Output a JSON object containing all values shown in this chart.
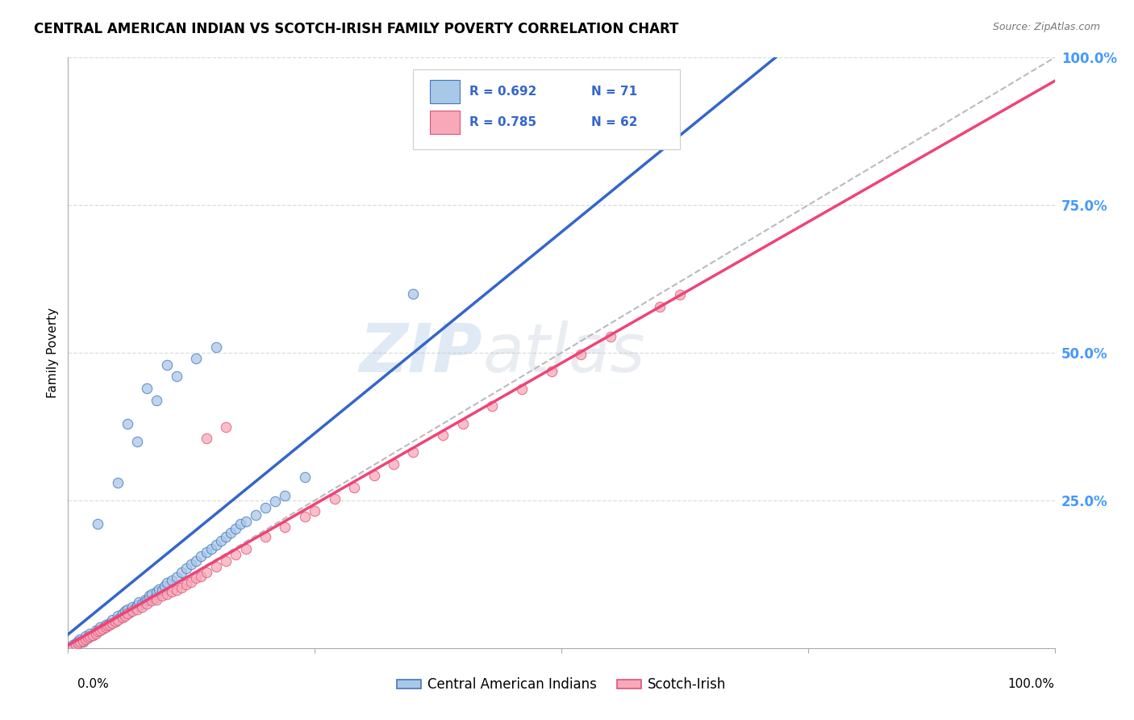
{
  "title": "CENTRAL AMERICAN INDIAN VS SCOTCH-IRISH FAMILY POVERTY CORRELATION CHART",
  "source": "Source: ZipAtlas.com",
  "ylabel": "Family Poverty",
  "legend_r1": "R = 0.692",
  "legend_n1": "N = 71",
  "legend_r2": "R = 0.785",
  "legend_n2": "N = 62",
  "legend_label1": "Central American Indians",
  "legend_label2": "Scotch-Irish",
  "blue_fill": "#A8C8E8",
  "blue_edge": "#4477BB",
  "pink_fill": "#F8A8B8",
  "pink_edge": "#DD5577",
  "blue_line_color": "#3366CC",
  "pink_line_color": "#EE4477",
  "diagonal_color": "#BBBBBB",
  "grid_color": "#DDDDDD",
  "watermark_color": "#AACCEE",
  "right_tick_color": "#4499FF",
  "blue_x": [
    0.005,
    0.008,
    0.01,
    0.012,
    0.015,
    0.018,
    0.02,
    0.022,
    0.025,
    0.028,
    0.03,
    0.032,
    0.035,
    0.038,
    0.04,
    0.042,
    0.045,
    0.048,
    0.05,
    0.052,
    0.055,
    0.058,
    0.06,
    0.062,
    0.065,
    0.068,
    0.07,
    0.072,
    0.075,
    0.078,
    0.08,
    0.082,
    0.085,
    0.088,
    0.09,
    0.092,
    0.095,
    0.098,
    0.1,
    0.105,
    0.11,
    0.115,
    0.12,
    0.125,
    0.13,
    0.135,
    0.14,
    0.145,
    0.15,
    0.155,
    0.16,
    0.165,
    0.17,
    0.175,
    0.18,
    0.19,
    0.2,
    0.21,
    0.22,
    0.24,
    0.03,
    0.05,
    0.07,
    0.09,
    0.11,
    0.13,
    0.15,
    0.06,
    0.08,
    0.1,
    0.35
  ],
  "blue_y": [
    0.005,
    0.008,
    0.012,
    0.015,
    0.01,
    0.02,
    0.018,
    0.025,
    0.022,
    0.03,
    0.028,
    0.035,
    0.032,
    0.04,
    0.038,
    0.042,
    0.048,
    0.045,
    0.055,
    0.05,
    0.058,
    0.062,
    0.065,
    0.06,
    0.07,
    0.068,
    0.072,
    0.078,
    0.075,
    0.082,
    0.08,
    0.088,
    0.092,
    0.085,
    0.095,
    0.1,
    0.098,
    0.105,
    0.11,
    0.115,
    0.12,
    0.128,
    0.135,
    0.142,
    0.148,
    0.155,
    0.162,
    0.168,
    0.175,
    0.182,
    0.188,
    0.195,
    0.202,
    0.21,
    0.215,
    0.225,
    0.238,
    0.248,
    0.258,
    0.29,
    0.21,
    0.28,
    0.35,
    0.42,
    0.46,
    0.49,
    0.51,
    0.38,
    0.44,
    0.48,
    0.6
  ],
  "pink_x": [
    0.005,
    0.008,
    0.01,
    0.012,
    0.015,
    0.018,
    0.02,
    0.022,
    0.025,
    0.028,
    0.03,
    0.032,
    0.035,
    0.038,
    0.04,
    0.042,
    0.045,
    0.048,
    0.05,
    0.055,
    0.058,
    0.06,
    0.065,
    0.07,
    0.075,
    0.08,
    0.085,
    0.09,
    0.095,
    0.1,
    0.105,
    0.11,
    0.115,
    0.12,
    0.125,
    0.13,
    0.135,
    0.14,
    0.15,
    0.16,
    0.17,
    0.18,
    0.2,
    0.22,
    0.24,
    0.25,
    0.27,
    0.29,
    0.31,
    0.33,
    0.35,
    0.38,
    0.4,
    0.43,
    0.46,
    0.49,
    0.52,
    0.14,
    0.16,
    0.62,
    0.55,
    0.6
  ],
  "pink_y": [
    0.002,
    0.005,
    0.008,
    0.01,
    0.012,
    0.015,
    0.018,
    0.02,
    0.022,
    0.025,
    0.028,
    0.03,
    0.032,
    0.035,
    0.038,
    0.04,
    0.042,
    0.045,
    0.048,
    0.052,
    0.055,
    0.058,
    0.062,
    0.065,
    0.07,
    0.075,
    0.08,
    0.082,
    0.088,
    0.092,
    0.095,
    0.098,
    0.102,
    0.108,
    0.112,
    0.118,
    0.122,
    0.128,
    0.138,
    0.148,
    0.158,
    0.168,
    0.188,
    0.205,
    0.222,
    0.232,
    0.252,
    0.272,
    0.292,
    0.312,
    0.332,
    0.36,
    0.38,
    0.41,
    0.438,
    0.468,
    0.498,
    0.355,
    0.375,
    0.598,
    0.528,
    0.578
  ]
}
